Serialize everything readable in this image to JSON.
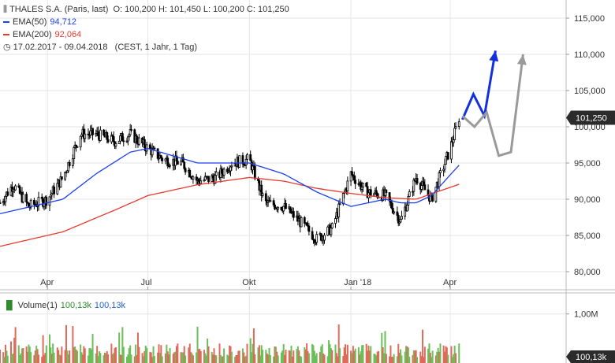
{
  "header": {
    "instrument": "THALES S.A. (Paris, last)",
    "ohlc": "O: 100,200  H: 101,450  L: 100,200  C: 101,250",
    "ema50_label": "EMA(50)",
    "ema50_value": "94,712",
    "ema200_label": "EMA(200)",
    "ema200_value": "92,064",
    "range": "17.02.2017 - 09.04.2018",
    "range_detail": "(CEST, 1 Jahr, 1 Tag)"
  },
  "volume_panel": {
    "label": "Volume(1)",
    "value_green": "100,13k",
    "value_blue": "100,13k"
  },
  "colors": {
    "ema50": "#1c3ff0",
    "ema200": "#e63a2e",
    "candle": "#000000",
    "vol_up": "#6bbf59",
    "vol_down": "#e06a5a",
    "arrow_blue": "#1230e0",
    "arrow_gray": "#9a9a9a",
    "last_badge": "#2b2b2b",
    "grid": "#e6e6e6",
    "vol_label": "#2c8a2c",
    "vol_blue": "#2260c8"
  },
  "chart_data": {
    "type": "line",
    "title": "THALES S.A. (Paris, last)",
    "xlabel": "",
    "ylabel": "",
    "x_ticks": [
      "Apr",
      "Jul",
      "Okt",
      "Jan '18",
      "Apr"
    ],
    "y_ticks": [
      "115,000",
      "110,000",
      "105,000",
      "100,000",
      "95,000",
      "90,000",
      "85,000",
      "80,000"
    ],
    "ylim": [
      77.5,
      117.5
    ],
    "grid": true,
    "last_value_label": "101,250",
    "series": [
      {
        "name": "THALES S.A. (Paris, last)",
        "x": [
          "17.02.2017",
          "01.03.2017",
          "15.03.2017",
          "01.04.2017",
          "15.04.2017",
          "01.05.2017",
          "15.05.2017",
          "01.06.2017",
          "15.06.2017",
          "01.07.2017",
          "15.07.2017",
          "01.08.2017",
          "15.08.2017",
          "01.09.2017",
          "15.09.2017",
          "01.10.2017",
          "15.10.2017",
          "01.11.2017",
          "15.11.2017",
          "01.12.2017",
          "15.12.2017",
          "01.01.2018",
          "15.01.2018",
          "01.02.2018",
          "15.02.2018",
          "01.03.2018",
          "15.03.2018",
          "01.04.2018",
          "09.04.2018"
        ],
        "values": [
          89.5,
          92.0,
          89.0,
          90.0,
          93.0,
          99.0,
          99.0,
          98.0,
          99.0,
          97.0,
          95.5,
          95.0,
          92.5,
          93.0,
          95.0,
          95.5,
          89.5,
          89.0,
          87.0,
          84.5,
          86.0,
          93.5,
          91.0,
          90.5,
          87.0,
          93.0,
          90.0,
          97.0,
          101.25
        ]
      },
      {
        "name": "EMA(50)",
        "x": [
          "17.02.2017",
          "15.04.2017",
          "15.05.2017",
          "15.06.2017",
          "01.07.2017",
          "15.08.2017",
          "01.10.2017",
          "01.11.2017",
          "01.12.2017",
          "01.01.2018",
          "01.02.2018",
          "15.02.2018",
          "01.03.2018",
          "15.03.2018",
          "09.04.2018"
        ],
        "values": [
          88.0,
          90.0,
          93.5,
          96.5,
          97.0,
          95.0,
          95.0,
          93.5,
          91.0,
          89.0,
          90.0,
          89.5,
          89.5,
          90.5,
          94.7
        ]
      },
      {
        "name": "EMA(200)",
        "x": [
          "17.02.2017",
          "15.04.2017",
          "01.06.2017",
          "01.07.2017",
          "15.08.2017",
          "01.10.2017",
          "01.11.2017",
          "01.12.2017",
          "01.01.2018",
          "01.02.2018",
          "01.03.2018",
          "09.04.2018"
        ],
        "values": [
          83.5,
          85.5,
          88.5,
          90.5,
          92.0,
          93.0,
          92.5,
          91.5,
          90.8,
          90.2,
          90.0,
          92.06
        ]
      }
    ],
    "volume": {
      "name": "Volume(1)",
      "y_ticks": [
        "1,00M"
      ],
      "last_value_label": "100,13k"
    },
    "annotations": [
      {
        "type": "arrow",
        "color": "blue",
        "points": [
          [
            101.0,
            0
          ],
          [
            104.5,
            1
          ],
          [
            101.5,
            2
          ],
          [
            110.5,
            3
          ]
        ]
      },
      {
        "type": "arrow",
        "color": "gray",
        "points": [
          [
            101.5,
            0
          ],
          [
            100.0,
            1
          ],
          [
            102.0,
            2
          ],
          [
            96.0,
            3
          ],
          [
            96.5,
            4
          ],
          [
            110.0,
            5
          ]
        ]
      }
    ]
  }
}
